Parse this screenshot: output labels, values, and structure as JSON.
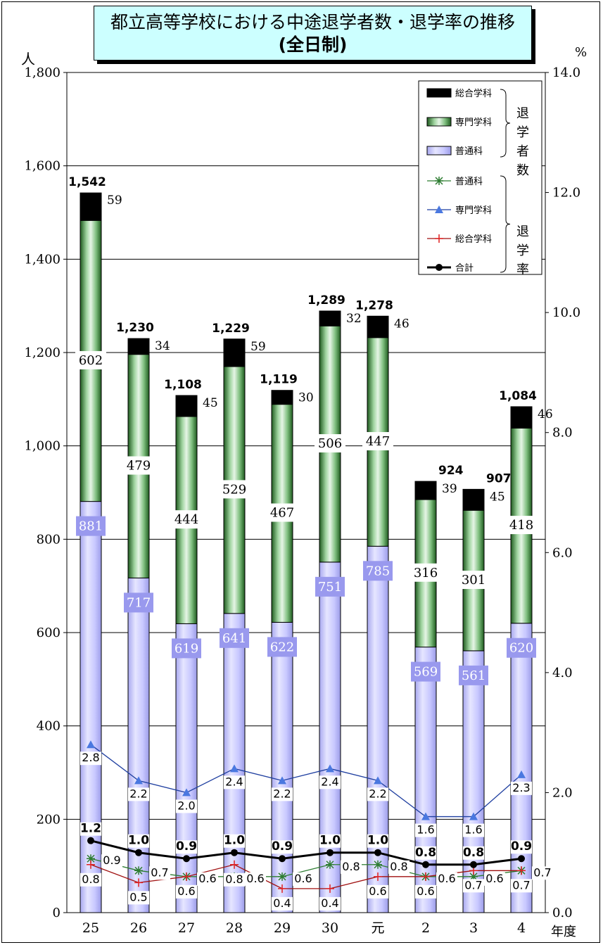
{
  "chart_data": {
    "type": "bar",
    "title": "都立高等学校における中途退学者数・退学率の推移",
    "subtitle": "(全日制)",
    "ylabel": "人",
    "ylabel_right": "%",
    "xlabel": "年度",
    "categories": [
      "25",
      "26",
      "27",
      "28",
      "29",
      "30",
      "元",
      "2",
      "3",
      "4"
    ],
    "ylim": [
      0,
      1800
    ],
    "yticks": [
      "0",
      "200",
      "400",
      "600",
      "800",
      "1,000",
      "1,200",
      "1,400",
      "1,600",
      "1,800"
    ],
    "ylim_right": [
      0,
      14
    ],
    "yticks_right": [
      "0.0",
      "2.0",
      "4.0",
      "6.0",
      "8.0",
      "10.0",
      "12.0",
      "14.0"
    ],
    "grid": true,
    "legend_position": "top-right",
    "legend_group_dropouts": "退学者数",
    "legend_group_rates": "退学率",
    "series": [
      {
        "name": "普通科",
        "kind": "bar",
        "color": "#ccccff",
        "values": [
          881,
          717,
          619,
          641,
          622,
          751,
          785,
          569,
          561,
          620
        ],
        "labels": [
          "881",
          "717",
          "619",
          "641",
          "622",
          "751",
          "785",
          "569",
          "561",
          "620"
        ]
      },
      {
        "name": "専門学科",
        "kind": "bar",
        "color": "#2e6b2e",
        "values": [
          602,
          479,
          444,
          529,
          467,
          506,
          447,
          316,
          301,
          418
        ],
        "labels": [
          "602",
          "479",
          "444",
          "529",
          "467",
          "506",
          "447",
          "316",
          "301",
          "418"
        ]
      },
      {
        "name": "総合学科",
        "kind": "bar",
        "color": "#000000",
        "values": [
          59,
          34,
          45,
          59,
          30,
          32,
          46,
          39,
          45,
          46
        ],
        "labels": [
          "59",
          "34",
          "45",
          "59",
          "30",
          "32",
          "46",
          "39",
          "45",
          "46"
        ]
      }
    ],
    "totals": [
      1542,
      1230,
      1108,
      1229,
      1119,
      1289,
      1278,
      924,
      907,
      1084
    ],
    "total_labels": [
      "1,542",
      "1,230",
      "1,108",
      "1,229",
      "1,119",
      "1,289",
      "1,278",
      "924",
      "907",
      "1,084"
    ],
    "rate_series": [
      {
        "name": "普通科",
        "color": "#2e7d32",
        "marker": "asterisk",
        "values": [
          0.9,
          0.7,
          0.6,
          0.6,
          0.6,
          0.8,
          0.8,
          0.6,
          0.6,
          0.7
        ],
        "labels": [
          "0.9",
          "0.7",
          "0.6",
          "0.6",
          "0.6",
          "0.8",
          "0.8",
          "0.6",
          "0.6",
          "0.7"
        ]
      },
      {
        "name": "専門学科",
        "color": "#1f3fa0",
        "marker": "triangle",
        "values": [
          2.8,
          2.2,
          2.0,
          2.4,
          2.2,
          2.4,
          2.2,
          1.6,
          1.6,
          2.3
        ],
        "labels": [
          "2.8",
          "2.2",
          "2.0",
          "2.4",
          "2.2",
          "2.4",
          "2.2",
          "1.6",
          "1.6",
          "2.3"
        ]
      },
      {
        "name": "総合学科",
        "color": "#a01010",
        "marker": "plus",
        "values": [
          0.8,
          0.5,
          0.6,
          0.8,
          0.4,
          0.4,
          0.6,
          0.6,
          0.7,
          0.7
        ],
        "labels": [
          "0.8",
          "0.5",
          "0.6",
          "0.8",
          "0.4",
          "0.4",
          "0.6",
          "0.6",
          "0.7",
          "0.7"
        ]
      },
      {
        "name": "合計",
        "color": "#000000",
        "marker": "circle",
        "values": [
          1.2,
          1.0,
          0.9,
          1.0,
          0.9,
          1.0,
          1.0,
          0.8,
          0.8,
          0.9
        ],
        "labels": [
          "1.2",
          "1.0",
          "0.9",
          "1.0",
          "0.9",
          "1.0",
          "1.0",
          "0.8",
          "0.8",
          "0.9"
        ]
      }
    ]
  }
}
